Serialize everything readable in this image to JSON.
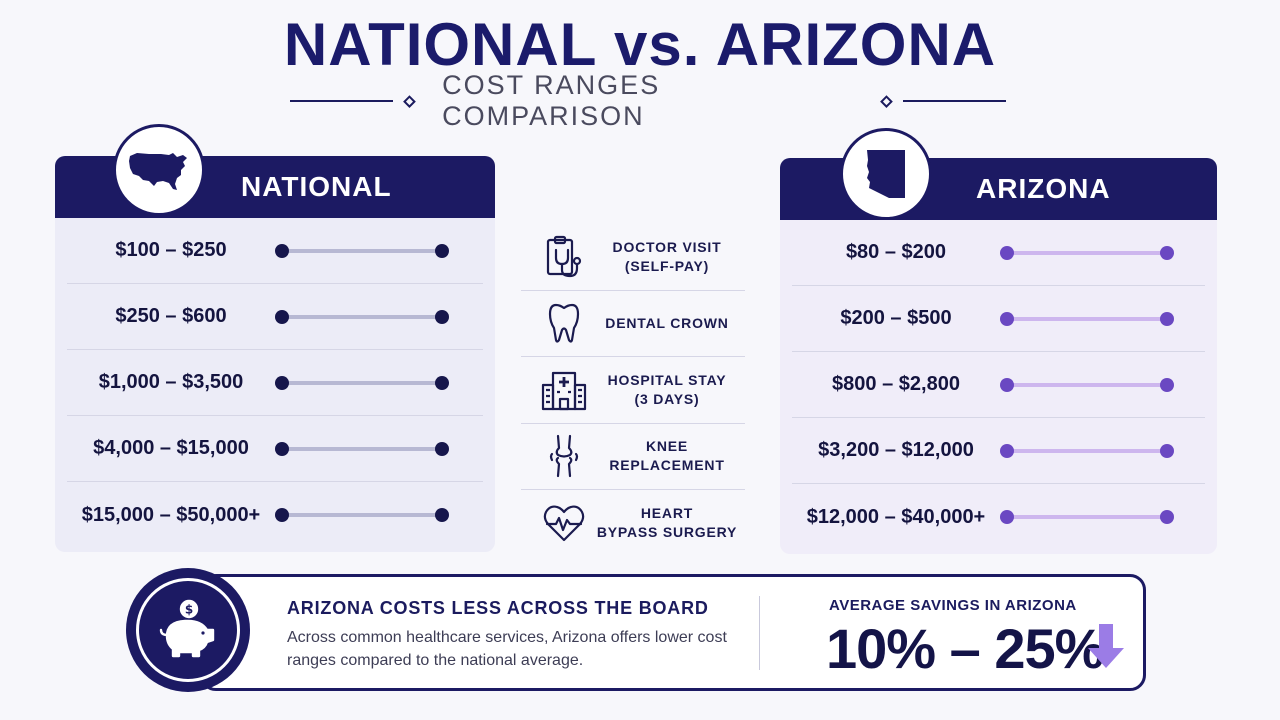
{
  "header": {
    "title": "NATIONAL vs. ARIZONA",
    "subtitle": "COST RANGES COMPARISON"
  },
  "national": {
    "title": "NATIONAL",
    "icon": "usa-map-icon",
    "ranges": [
      "$100 – $250",
      "$250 – $600",
      "$1,000 – $3,500",
      "$4,000 – $15,000",
      "$15,000 – $50,000+"
    ]
  },
  "arizona": {
    "title": "ARIZONA",
    "icon": "arizona-map-icon",
    "ranges": [
      "$80 – $200",
      "$200 – $500",
      "$800 – $2,800",
      "$3,200 – $12,000",
      "$12,000 – $40,000+"
    ]
  },
  "services": [
    {
      "label": "DOCTOR VISIT\n(SELF-PAY)",
      "icon": "clipboard-stethoscope-icon"
    },
    {
      "label": "DENTAL CROWN",
      "icon": "tooth-icon"
    },
    {
      "label": "HOSPITAL STAY\n(3 DAYS)",
      "icon": "hospital-icon"
    },
    {
      "label": "KNEE\nREPLACEMENT",
      "icon": "knee-joint-icon"
    },
    {
      "label": "HEART\nBYPASS SURGERY",
      "icon": "heart-pulse-icon"
    }
  ],
  "summary": {
    "heading": "ARIZONA COSTS LESS ACROSS THE BOARD",
    "body": "Across common healthcare services, Arizona offers lower cost ranges compared to the national average.",
    "savings_label": "AVERAGE SAVINGS IN ARIZONA",
    "savings_value": "10% – 25%",
    "icon": "piggy-bank-icon"
  },
  "colors": {
    "navy": "#1c1a63",
    "arizona_accent": "#6a48c2",
    "arrow": "#9b7ce6"
  }
}
